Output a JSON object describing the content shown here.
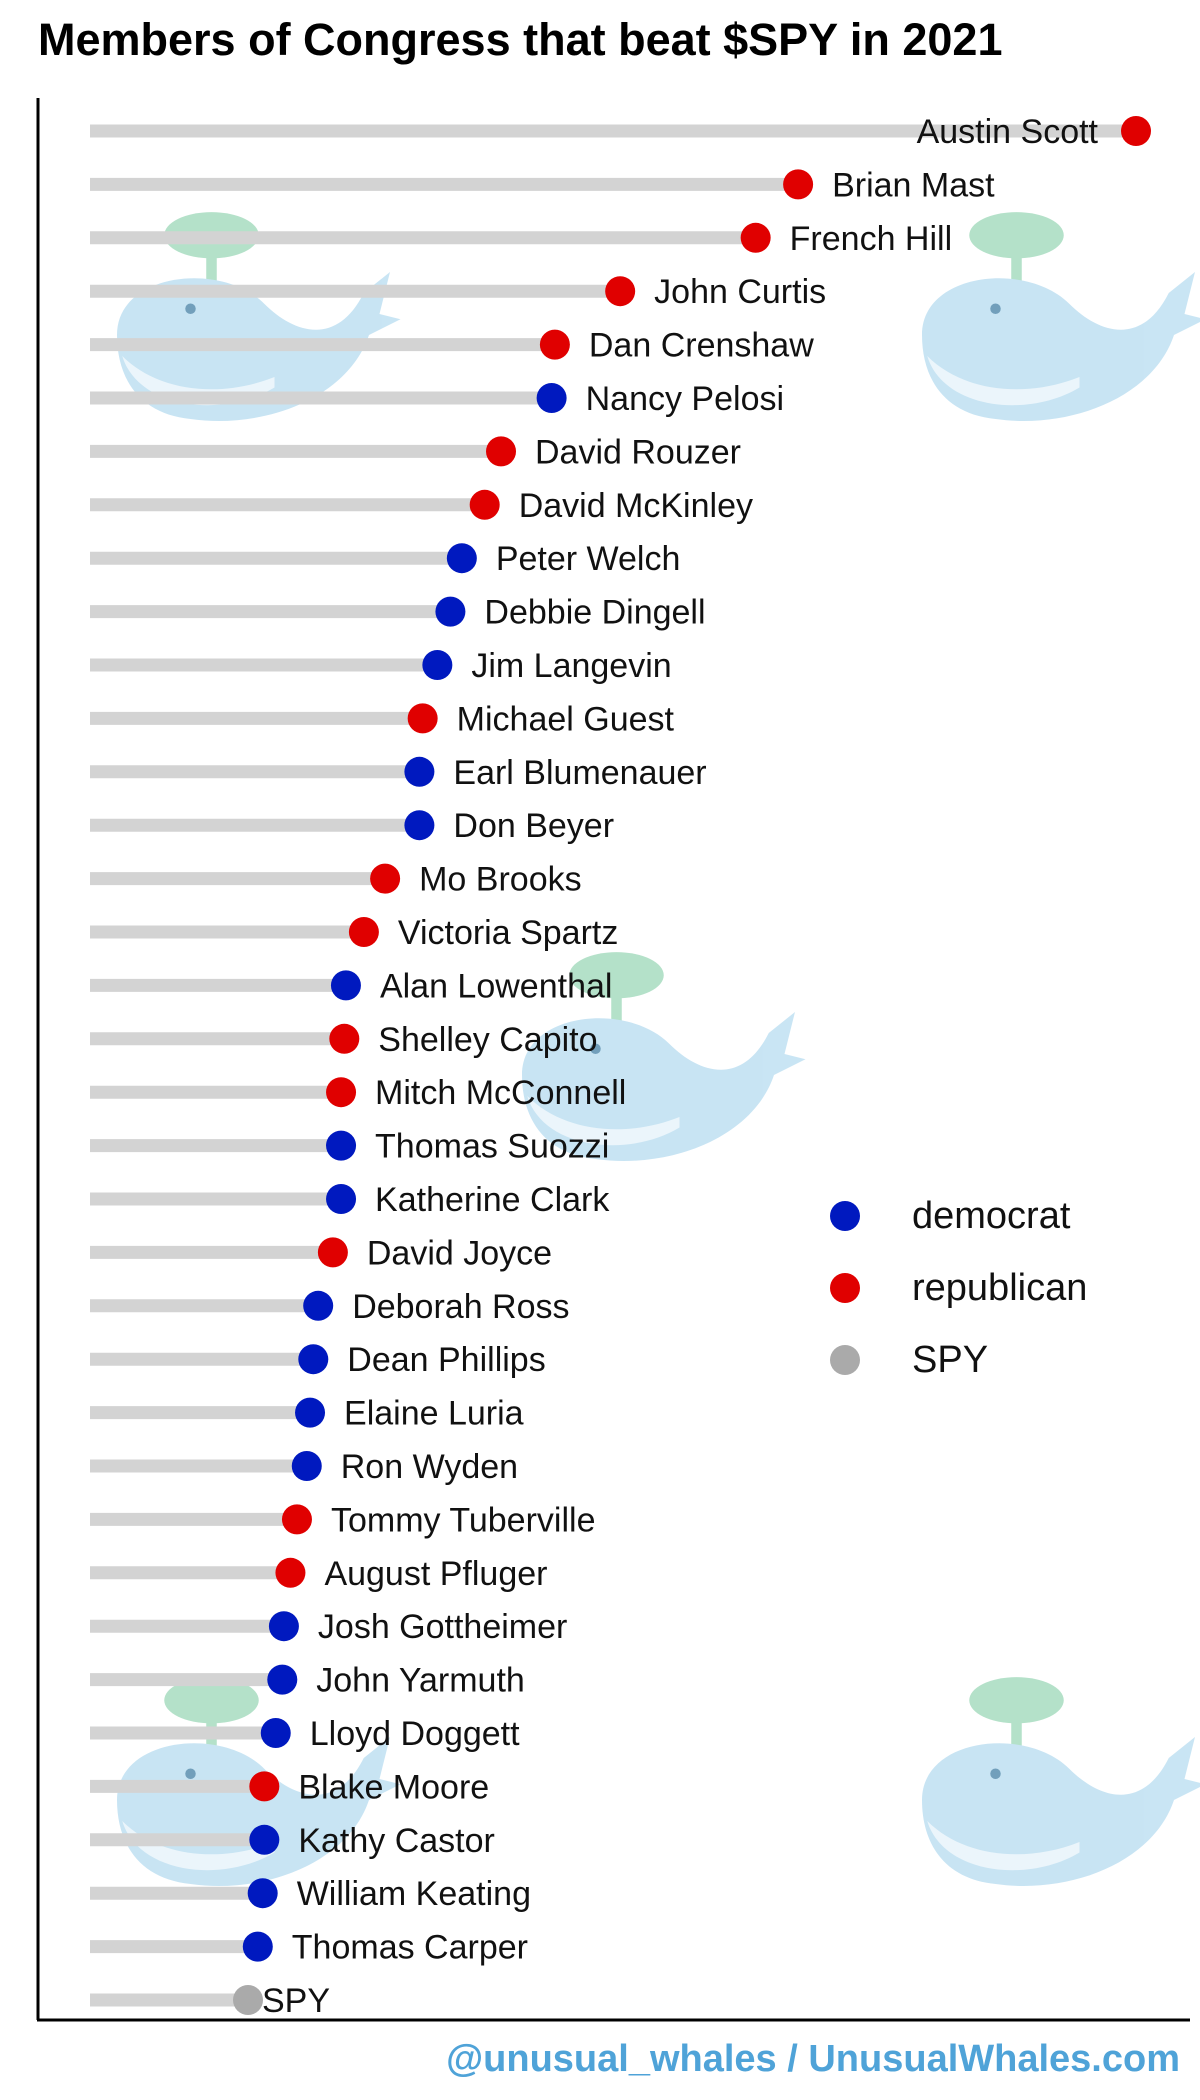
{
  "title": "Members of Congress that beat $SPY in 2021",
  "footer": "@unusual_whales / UnusualWhales.com",
  "colors": {
    "democrat": "#0019bf",
    "republican": "#e00000",
    "spy": "#aaaaaa",
    "bar": "#d3d3d3",
    "footer": "#4fa3d8",
    "whale_body": "#bfe0f2",
    "whale_spout": "#a8dcc0"
  },
  "chart_data": {
    "type": "lollipop",
    "title": "Members of Congress that beat $SPY in 2021",
    "xlabel": "",
    "ylabel": "",
    "x_axis_ticks_visible": false,
    "grid": false,
    "legend_position": "right",
    "legend": [
      {
        "key": "democrat",
        "label": "democrat"
      },
      {
        "key": "republican",
        "label": "republican"
      },
      {
        "key": "spy",
        "label": "SPY"
      }
    ],
    "xlim": [
      0,
      100
    ],
    "points": [
      {
        "name": "Austin Scott",
        "party": "republican",
        "value": 100
      },
      {
        "name": "Brian Mast",
        "party": "republican",
        "value": 79.3
      },
      {
        "name": "French Hill",
        "party": "republican",
        "value": 76.7
      },
      {
        "name": "John Curtis",
        "party": "republican",
        "value": 68.4
      },
      {
        "name": "Dan Crenshaw",
        "party": "republican",
        "value": 64.4
      },
      {
        "name": "Nancy Pelosi",
        "party": "democrat",
        "value": 64.2
      },
      {
        "name": "David Rouzer",
        "party": "republican",
        "value": 61.1
      },
      {
        "name": "David McKinley",
        "party": "republican",
        "value": 60.1
      },
      {
        "name": "Peter Welch",
        "party": "democrat",
        "value": 58.7
      },
      {
        "name": "Debbie Dingell",
        "party": "democrat",
        "value": 58
      },
      {
        "name": "Jim Langevin",
        "party": "democrat",
        "value": 57.2
      },
      {
        "name": "Michael Guest",
        "party": "republican",
        "value": 56.3
      },
      {
        "name": "Earl Blumenauer",
        "party": "democrat",
        "value": 56.1
      },
      {
        "name": "Don Beyer",
        "party": "democrat",
        "value": 56.1
      },
      {
        "name": "Mo Brooks",
        "party": "republican",
        "value": 54
      },
      {
        "name": "Victoria Spartz",
        "party": "republican",
        "value": 52.7
      },
      {
        "name": "Alan Lowenthal",
        "party": "democrat",
        "value": 51.6
      },
      {
        "name": "Shelley Capito",
        "party": "republican",
        "value": 51.5
      },
      {
        "name": "Mitch McConnell",
        "party": "republican",
        "value": 51.3
      },
      {
        "name": "Thomas Suozzi",
        "party": "democrat",
        "value": 51.3
      },
      {
        "name": "Katherine Clark",
        "party": "democrat",
        "value": 51.3
      },
      {
        "name": "David Joyce",
        "party": "republican",
        "value": 50.8
      },
      {
        "name": "Deborah Ross",
        "party": "democrat",
        "value": 49.9
      },
      {
        "name": "Dean Phillips",
        "party": "democrat",
        "value": 49.6
      },
      {
        "name": "Elaine Luria",
        "party": "democrat",
        "value": 49.4
      },
      {
        "name": "Ron Wyden",
        "party": "democrat",
        "value": 49.2
      },
      {
        "name": "Tommy Tuberville",
        "party": "republican",
        "value": 48.6
      },
      {
        "name": "August Pfluger",
        "party": "republican",
        "value": 48.2
      },
      {
        "name": "Josh Gottheimer",
        "party": "democrat",
        "value": 47.8
      },
      {
        "name": "John Yarmuth",
        "party": "democrat",
        "value": 47.7
      },
      {
        "name": "Lloyd Doggett",
        "party": "democrat",
        "value": 47.3
      },
      {
        "name": "Blake Moore",
        "party": "republican",
        "value": 46.6
      },
      {
        "name": "Kathy Castor",
        "party": "democrat",
        "value": 46.6
      },
      {
        "name": "William Keating",
        "party": "democrat",
        "value": 46.5
      },
      {
        "name": "Thomas Carper",
        "party": "democrat",
        "value": 46.2
      },
      {
        "name": "SPY",
        "party": "spy",
        "value": 45.6
      }
    ]
  }
}
